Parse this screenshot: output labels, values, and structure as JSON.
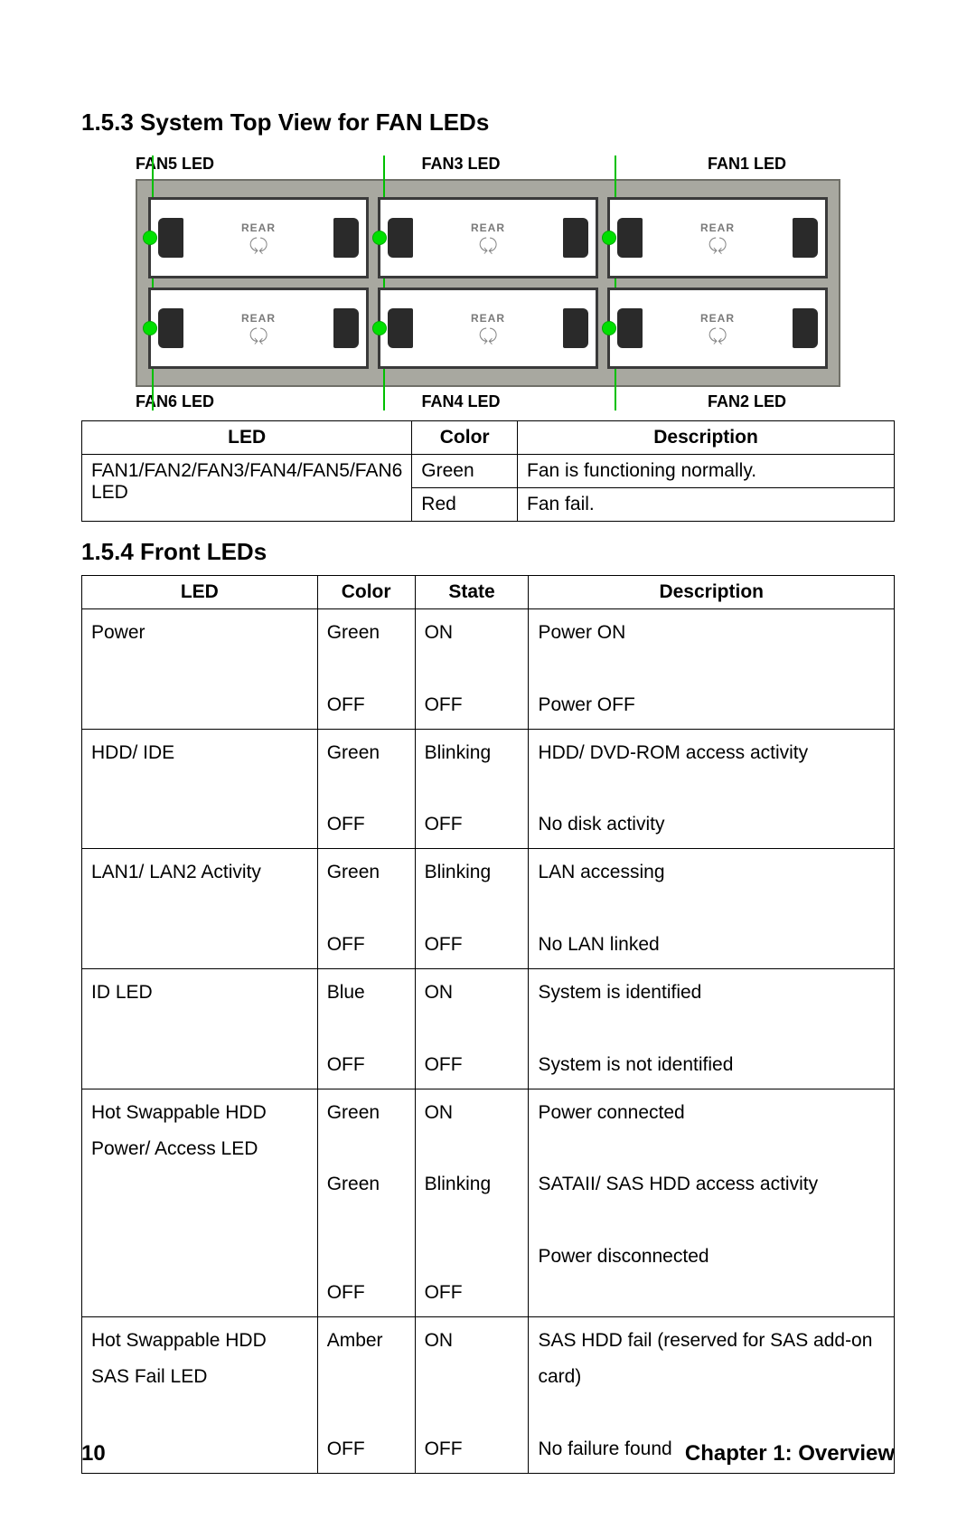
{
  "section_1_5_3": {
    "title": "1.5.3   System Top View for FAN LEDs",
    "top_labels": [
      "FAN5 LED",
      "FAN3 LED",
      "FAN1 LED"
    ],
    "bottom_labels": [
      "FAN6 LED",
      "FAN4 LED",
      "FAN2 LED"
    ],
    "module_text": "REAR",
    "vline_color": "#00c000",
    "led_color": "#00e000",
    "table": {
      "headers": [
        "LED",
        "Color",
        "Description"
      ],
      "rows": [
        {
          "led": "FAN1/FAN2/FAN3/FAN4/FAN5/FAN6 LED",
          "rowspan": 2,
          "color": "Green",
          "desc": "Fan is functioning normally."
        },
        {
          "color": "Red",
          "desc": "Fan fail."
        }
      ]
    }
  },
  "section_1_5_4": {
    "title": "1.5.4   Front LEDs",
    "table": {
      "headers": [
        "LED",
        "Color",
        "State",
        "Description"
      ],
      "rows": [
        {
          "led": "Power",
          "color": "Green\n\nOFF",
          "state": "ON\n\nOFF",
          "desc": "Power ON\n\nPower OFF"
        },
        {
          "led": "HDD/ IDE",
          "color": "Green\n\nOFF",
          "state": "Blinking\n\nOFF",
          "desc": "HDD/ DVD-ROM access activity\n\nNo disk activity"
        },
        {
          "led": "LAN1/ LAN2 Activity",
          "color": "Green\n\nOFF",
          "state": "Blinking\n\nOFF",
          "desc": "LAN accessing\n\nNo LAN linked"
        },
        {
          "led": "ID LED",
          "color": "Blue\n\nOFF",
          "state": "ON\n\nOFF",
          "desc": "System is identified\n\nSystem is not identified"
        },
        {
          "led": "Hot Swappable HDD Power/ Access LED",
          "color": "Green\n\nGreen\n\n\nOFF",
          "state": "ON\n\nBlinking\n\n\nOFF",
          "desc": "Power connected\n\nSATAII/ SAS HDD access activity\n\nPower disconnected"
        },
        {
          "led": "Hot Swappable HDD SAS Fail LED",
          "color": "Amber\n\n\nOFF",
          "state": "ON\n\n\nOFF",
          "desc": "SAS HDD fail (reserved for SAS add-on card)\n\nNo failure found"
        }
      ]
    }
  },
  "footer": {
    "page": "10",
    "chapter": "Chapter 1: Overview"
  }
}
